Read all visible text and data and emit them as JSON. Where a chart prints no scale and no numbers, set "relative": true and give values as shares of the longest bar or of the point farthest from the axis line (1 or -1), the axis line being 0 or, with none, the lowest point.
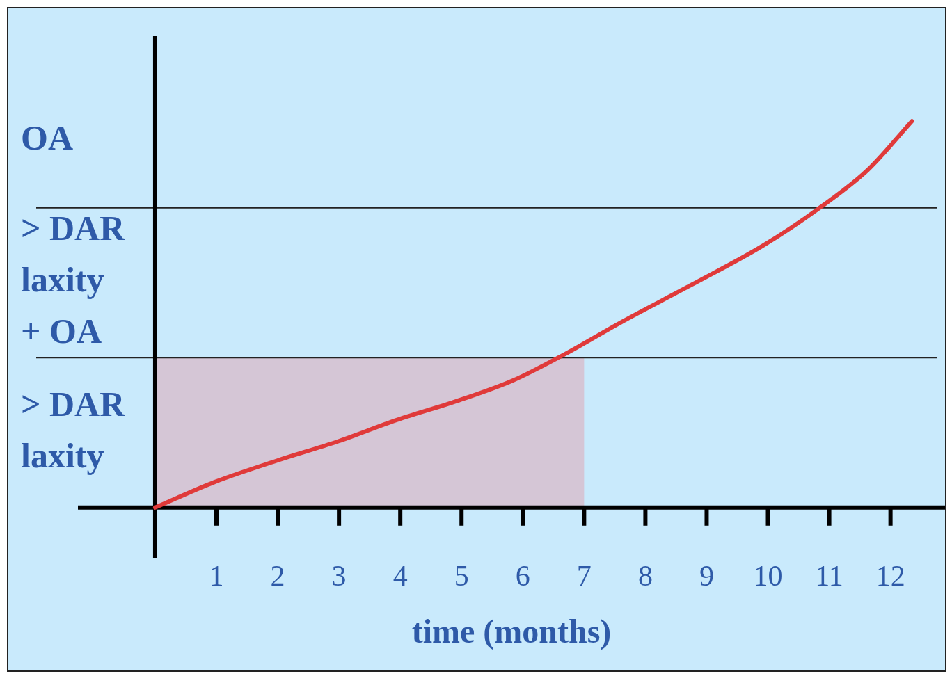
{
  "chart_data": {
    "type": "line",
    "xlabel": "time (months)",
    "relative": true,
    "xlim": [
      -1.26,
      12.89
    ],
    "xticks": [
      1,
      2,
      3,
      4,
      5,
      6,
      7,
      8,
      9,
      10,
      11,
      12
    ],
    "series": [
      {
        "color": "#e03a3a",
        "x": [
          0,
          0.97,
          2.0,
          2.98,
          3.95,
          4.93,
          5.84,
          6.64,
          7.62,
          8.76,
          9.91,
          10.82,
          11.63,
          12.35
        ],
        "values": [
          0,
          0.066,
          0.122,
          0.171,
          0.227,
          0.276,
          0.329,
          0.393,
          0.481,
          0.577,
          0.677,
          0.773,
          0.874,
          1
        ]
      }
    ],
    "ref_lines": [
      {
        "axis": "y",
        "value": 0.388,
        "color": "#222222"
      },
      {
        "axis": "y",
        "value": 0.776,
        "color": "#222222"
      }
    ],
    "bands": [
      {
        "axis": "x",
        "from": 0,
        "to": 7,
        "color": "#d5c6d6"
      }
    ],
    "annotations": [
      "OA",
      "> DAR laxity + OA",
      "> DAR laxity"
    ],
    "grid": false,
    "legend": false,
    "marker": "none",
    "line_style": "solid"
  }
}
